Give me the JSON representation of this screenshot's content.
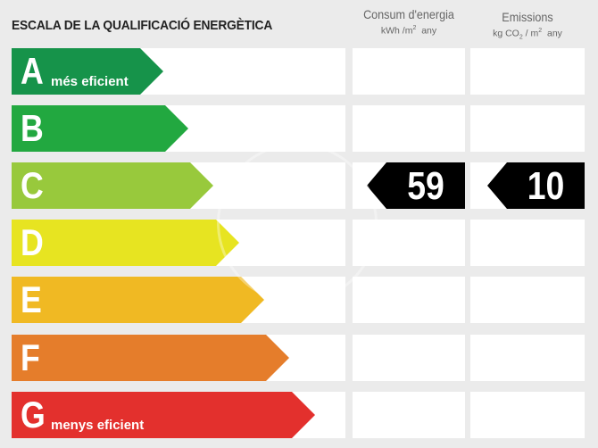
{
  "header": {
    "title": "ESCALA DE LA QUALIFICACIÓ ENERGÈTICA",
    "consumption": {
      "title": "Consum d'energia",
      "unit_main": "kWh /m",
      "unit_sup": "2",
      "unit_tail": "any"
    },
    "emissions": {
      "title": "Emissions",
      "unit_main": "kg CO",
      "unit_sub": "2",
      "unit_mid": "/ m",
      "unit_sup": "2",
      "unit_tail": "any"
    }
  },
  "ratings": [
    {
      "letter": "A",
      "label": "més eficient",
      "color": "#16934a"
    },
    {
      "letter": "B",
      "label": "",
      "color": "#22a840"
    },
    {
      "letter": "C",
      "label": "",
      "color": "#98c93c"
    },
    {
      "letter": "D",
      "label": "",
      "color": "#e7e421"
    },
    {
      "letter": "E",
      "label": "",
      "color": "#f0b923"
    },
    {
      "letter": "F",
      "label": "",
      "color": "#e57d2b"
    },
    {
      "letter": "G",
      "label": "menys eficient",
      "color": "#e3302d"
    }
  ],
  "current": {
    "rating": "C",
    "consumption_value": "59",
    "emissions_value": "10"
  }
}
